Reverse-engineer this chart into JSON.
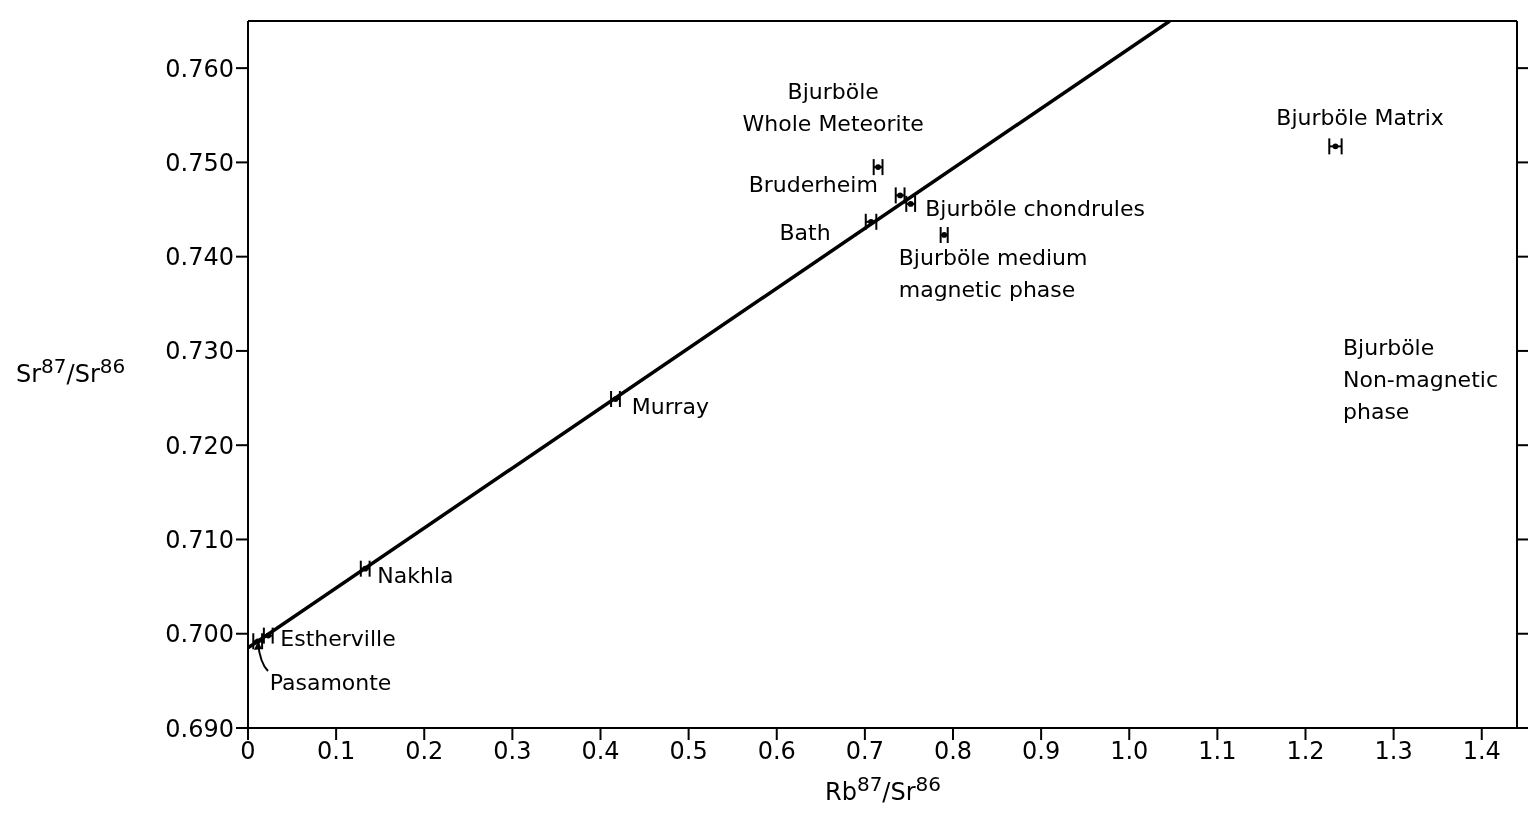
{
  "chart_data": {
    "type": "scatter",
    "xlabel": "Rb$^{87}$/Sr$^{86}$",
    "ylabel": "Sr$^{87}$/Sr$^{86}$",
    "xlim": [
      0,
      1.44
    ],
    "ylim": [
      0.69,
      0.765
    ],
    "xticks": [
      0,
      {
        "value": 0.1,
        "label": "0.1"
      },
      {
        "value": 0.2,
        "label": "0.2"
      },
      {
        "value": 0.3,
        "label": "0.3"
      },
      {
        "value": 0.4,
        "label": "0.4"
      },
      {
        "value": 0.5,
        "label": "0.5"
      },
      {
        "value": 0.6,
        "label": "0.6"
      },
      {
        "value": 0.7,
        "label": "0.7"
      },
      {
        "value": 0.8,
        "label": "0.8"
      },
      {
        "value": 0.9,
        "label": "0.9"
      },
      {
        "value": 1.0,
        "label": "1.0"
      },
      {
        "value": 1.1,
        "label": "1.1"
      },
      {
        "value": 1.2,
        "label": "1.2"
      },
      {
        "value": 1.3,
        "label": "1.3"
      },
      {
        "value": 1.4,
        "label": "1.4"
      }
    ],
    "yticks": [
      {
        "value": 0.69,
        "label": "0.690"
      },
      {
        "value": 0.7,
        "label": "0.700"
      },
      {
        "value": 0.71,
        "label": "0.710"
      },
      {
        "value": 0.72,
        "label": "0.720"
      },
      {
        "value": 0.73,
        "label": "0.730"
      },
      {
        "value": 0.74,
        "label": "0.740"
      },
      {
        "value": 0.75,
        "label": "0.750"
      },
      {
        "value": 0.76,
        "label": "0.760"
      }
    ],
    "grid": false,
    "legend": false,
    "marker": "circle",
    "series": [
      {
        "color": "#000000",
        "x": [
          0.011,
          0.023,
          0.133,
          0.417,
          0.707,
          0.74,
          0.752,
          0.715,
          0.79,
          1.234
        ],
        "values": [
          0.6992,
          0.6998,
          0.7069,
          0.7249,
          0.7437,
          0.7465,
          0.7456,
          0.7495,
          0.7423,
          0.7517
        ],
        "xerrors": [
          0.005,
          0.005,
          0.005,
          0.005,
          0.006,
          0.005,
          0.005,
          0.005,
          0.004,
          0.007
        ]
      },
      {
        "type": "line",
        "color": "#000000",
        "line_style": "solid",
        "marker": "none",
        "x": [
          0,
          1.046
        ],
        "values": [
          0.6985,
          0.765
        ]
      }
    ],
    "annotations": [
      {
        "text": "Pasamonte",
        "x": 0.011,
        "y": 0.6992
      },
      {
        "text": "Estherville",
        "x": 0.023,
        "y": 0.6998
      },
      {
        "text": "Nakhla",
        "x": 0.133,
        "y": 0.7069
      },
      {
        "text": "Murray",
        "x": 0.417,
        "y": 0.7249
      },
      {
        "text": "Bath",
        "x": 0.707,
        "y": 0.7437
      },
      {
        "text": "Bruderheim",
        "x": 0.74,
        "y": 0.7465
      },
      {
        "text": "Bjurböle chondrules",
        "x": 0.752,
        "y": 0.7456
      },
      {
        "text": "Bjurböle\nWhole Meteorite",
        "x": 0.715,
        "y": 0.7495
      },
      {
        "text": "Bjurböle medium\nmagnetic phase",
        "x": 0.79,
        "y": 0.7423
      },
      {
        "text": "Bjurböle Matrix",
        "x": 1.234,
        "y": 0.7517
      },
      "Bjurböle\nNon-magnetic\nphase"
    ]
  }
}
